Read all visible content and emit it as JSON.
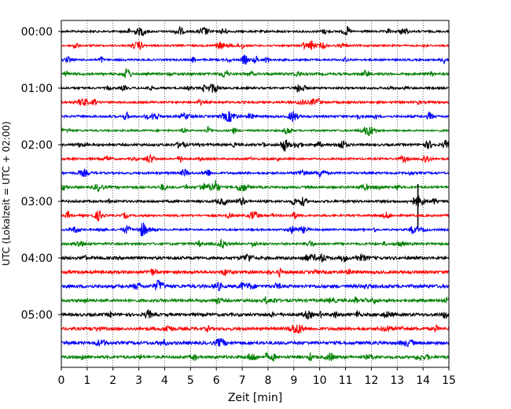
{
  "chart_data": {
    "type": "line",
    "xlabel": "Zeit  [min]",
    "ylabel": "UTC (Lokalzeit = UTC + 02:00)",
    "xlim": [
      0,
      15
    ],
    "x_ticks": [
      "0",
      "1",
      "2",
      "3",
      "4",
      "5",
      "6",
      "7",
      "8",
      "9",
      "10",
      "11",
      "12",
      "13",
      "14",
      "15"
    ],
    "y_ticks": [
      {
        "label": "00:00",
        "trace": 0
      },
      {
        "label": "01:00",
        "trace": 4
      },
      {
        "label": "02:00",
        "trace": 8
      },
      {
        "label": "03:00",
        "trace": 12
      },
      {
        "label": "04:00",
        "trace": 16
      },
      {
        "label": "05:00",
        "trace": 20
      }
    ],
    "trace_minutes": 15,
    "num_traces": 24,
    "trace_colors": [
      "#000000",
      "#ff0000",
      "#0000ff",
      "#008000"
    ],
    "grid": {
      "x": true,
      "style": "dotted"
    },
    "notable_events": [
      {
        "trace": 12,
        "minute": 13.8,
        "note": "large spike"
      },
      {
        "trace": 6,
        "minute": 6.5,
        "note": "burst"
      },
      {
        "trace": 7,
        "minute": 11.9,
        "note": "burst"
      },
      {
        "trace": 21,
        "minute": 9.1,
        "note": "burst"
      }
    ]
  }
}
